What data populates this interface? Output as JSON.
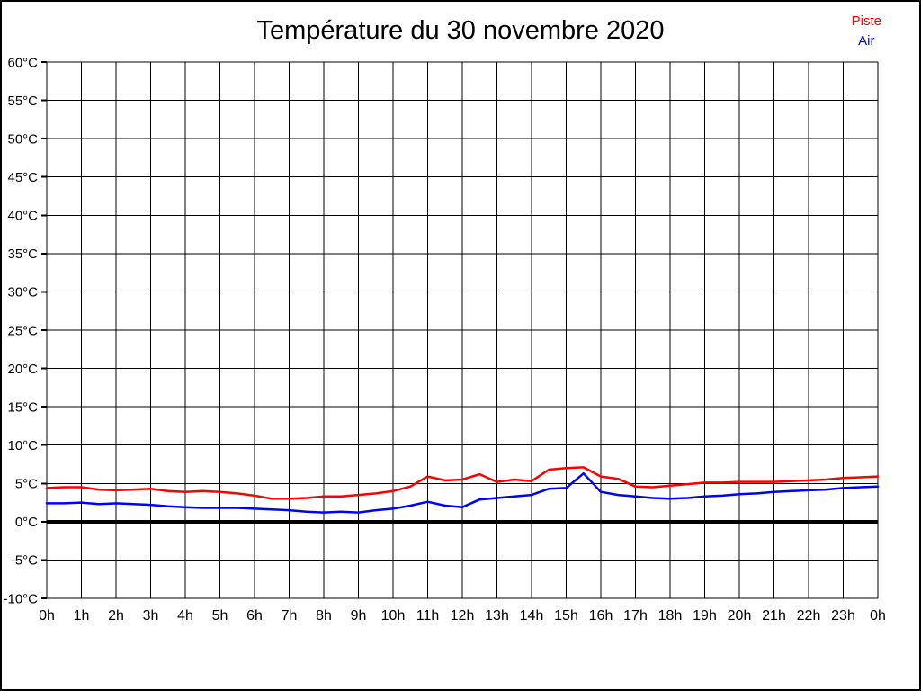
{
  "title": "Température du 30 novembre 2020",
  "legend": {
    "position": "top-right",
    "entries": [
      {
        "label": "Piste",
        "color": "#ff0000"
      },
      {
        "label": "Air",
        "color": "#0000ff"
      }
    ]
  },
  "chart_data": {
    "type": "line",
    "title": "Température du 30 novembre 2020",
    "xlabel": "",
    "ylabel": "",
    "xlim": [
      0,
      24
    ],
    "ylim": [
      -10,
      60
    ],
    "y_step": 5,
    "x_step": 1,
    "grid": true,
    "zero_line": true,
    "legend_position": "top-right",
    "x_tick_labels": [
      "0h",
      "1h",
      "2h",
      "3h",
      "4h",
      "5h",
      "6h",
      "7h",
      "8h",
      "9h",
      "10h",
      "11h",
      "12h",
      "13h",
      "14h",
      "15h",
      "16h",
      "17h",
      "18h",
      "19h",
      "20h",
      "21h",
      "22h",
      "23h",
      "0h"
    ],
    "y_tick_labels": [
      "60°C",
      "55°C",
      "50°C",
      "45°C",
      "40°C",
      "35°C",
      "30°C",
      "25°C",
      "20°C",
      "15°C",
      "10°C",
      "5°C",
      "0°C",
      "-5°C",
      "-10°C"
    ],
    "x": [
      0,
      0.5,
      1,
      1.5,
      2,
      2.5,
      3,
      3.5,
      4,
      4.5,
      5,
      5.5,
      6,
      6.5,
      7,
      7.5,
      8,
      8.5,
      9,
      9.5,
      10,
      10.5,
      11,
      11.5,
      12,
      12.5,
      13,
      13.5,
      14,
      14.5,
      15,
      15.5,
      16,
      16.5,
      17,
      17.5,
      18,
      18.5,
      19,
      19.5,
      20,
      20.5,
      21,
      21.5,
      22,
      22.5,
      23,
      23.5,
      24
    ],
    "series": [
      {
        "name": "Piste",
        "color": "#ff0000",
        "values": [
          4.4,
          4.5,
          4.5,
          4.2,
          4.1,
          4.2,
          4.3,
          4.0,
          3.9,
          4.0,
          3.9,
          3.7,
          3.4,
          3.0,
          3.0,
          3.1,
          3.3,
          3.3,
          3.5,
          3.7,
          4.0,
          4.6,
          5.9,
          5.4,
          5.5,
          6.2,
          5.2,
          5.5,
          5.3,
          6.8,
          7.0,
          7.1,
          5.9,
          5.6,
          4.6,
          4.5,
          4.7,
          4.9,
          5.1,
          5.1,
          5.2,
          5.2,
          5.2,
          5.3,
          5.4,
          5.5,
          5.7,
          5.8,
          5.9
        ]
      },
      {
        "name": "Air",
        "color": "#0000ff",
        "values": [
          2.4,
          2.4,
          2.5,
          2.3,
          2.4,
          2.3,
          2.2,
          2.0,
          1.9,
          1.8,
          1.8,
          1.8,
          1.7,
          1.6,
          1.5,
          1.3,
          1.2,
          1.3,
          1.2,
          1.5,
          1.7,
          2.1,
          2.6,
          2.1,
          1.9,
          2.9,
          3.1,
          3.3,
          3.5,
          4.3,
          4.4,
          6.3,
          3.9,
          3.5,
          3.3,
          3.1,
          3.0,
          3.1,
          3.3,
          3.4,
          3.6,
          3.7,
          3.9,
          4.0,
          4.1,
          4.2,
          4.4,
          4.5,
          4.6
        ]
      }
    ]
  }
}
